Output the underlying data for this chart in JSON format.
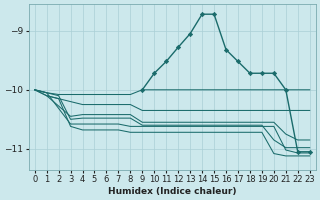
{
  "xlabel": "Humidex (Indice chaleur)",
  "ylabel": "",
  "bg_color": "#cce8ec",
  "grid_color": "#aacfd6",
  "line_color": "#1a6b6b",
  "xlim": [
    -0.5,
    23.5
  ],
  "ylim": [
    -11.35,
    -8.55
  ],
  "yticks": [
    -11,
    -10,
    -9
  ],
  "xticks": [
    0,
    1,
    2,
    3,
    4,
    5,
    6,
    7,
    8,
    9,
    10,
    11,
    12,
    13,
    14,
    15,
    16,
    17,
    18,
    19,
    20,
    21,
    22,
    23
  ],
  "series": [
    {
      "x": [
        0,
        1,
        2,
        3,
        4,
        5,
        6,
        7,
        8,
        9,
        10,
        11,
        12,
        13,
        14,
        15,
        16,
        17,
        18,
        19,
        20,
        21,
        22,
        23
      ],
      "y": [
        -10.0,
        -10.05,
        -10.08,
        -10.08,
        -10.08,
        -10.08,
        -10.08,
        -10.08,
        -10.08,
        -10.0,
        -10.0,
        -10.0,
        -10.0,
        -10.0,
        -10.0,
        -10.0,
        -10.0,
        -10.0,
        -10.0,
        -10.0,
        -10.0,
        -10.0,
        -10.0,
        -10.0
      ],
      "marker": false
    },
    {
      "x": [
        0,
        1,
        2,
        3,
        4,
        5,
        6,
        7,
        8,
        9,
        10,
        11,
        12,
        13,
        14,
        15,
        16,
        17,
        18,
        19,
        20,
        21,
        22,
        23
      ],
      "y": [
        -10.0,
        -10.1,
        -10.15,
        -10.2,
        -10.25,
        -10.25,
        -10.25,
        -10.25,
        -10.25,
        -10.35,
        -10.35,
        -10.35,
        -10.35,
        -10.35,
        -10.35,
        -10.35,
        -10.35,
        -10.35,
        -10.35,
        -10.35,
        -10.35,
        -10.35,
        -10.35,
        -10.35
      ],
      "marker": false
    },
    {
      "x": [
        1,
        3,
        4,
        5,
        6,
        7,
        8,
        9,
        10,
        11,
        12,
        13,
        14,
        15,
        16,
        17,
        18,
        19,
        20,
        21,
        22,
        23
      ],
      "y": [
        -10.1,
        -10.45,
        -10.42,
        -10.42,
        -10.42,
        -10.42,
        -10.42,
        -10.55,
        -10.55,
        -10.55,
        -10.55,
        -10.55,
        -10.55,
        -10.55,
        -10.55,
        -10.55,
        -10.55,
        -10.55,
        -10.55,
        -10.75,
        -10.85,
        -10.85
      ],
      "marker": false
    },
    {
      "x": [
        0,
        1,
        2,
        3,
        4,
        5,
        6,
        7,
        8,
        9,
        10,
        11,
        12,
        13,
        14,
        15,
        16,
        17,
        18,
        19,
        20,
        21,
        22,
        23
      ],
      "y": [
        -10.0,
        -10.05,
        -10.1,
        -10.5,
        -10.48,
        -10.48,
        -10.48,
        -10.48,
        -10.48,
        -10.6,
        -10.6,
        -10.6,
        -10.6,
        -10.6,
        -10.6,
        -10.6,
        -10.6,
        -10.6,
        -10.6,
        -10.6,
        -10.85,
        -10.98,
        -10.98,
        -10.98
      ],
      "marker": false
    },
    {
      "x": [
        0,
        1,
        3,
        4,
        5,
        6,
        7,
        8,
        9,
        10,
        11,
        12,
        13,
        14,
        15,
        16,
        17,
        18,
        19,
        20,
        21,
        22,
        23
      ],
      "y": [
        -10.0,
        -10.05,
        -10.58,
        -10.58,
        -10.58,
        -10.58,
        -10.58,
        -10.62,
        -10.62,
        -10.62,
        -10.62,
        -10.62,
        -10.62,
        -10.62,
        -10.62,
        -10.62,
        -10.62,
        -10.62,
        -10.62,
        -10.62,
        -11.02,
        -11.07,
        -11.07
      ],
      "marker": false
    },
    {
      "x": [
        0,
        1,
        2,
        3,
        4,
        5,
        6,
        7,
        8,
        9,
        10,
        11,
        12,
        13,
        14,
        15,
        16,
        17,
        18,
        19,
        20,
        21,
        22,
        23
      ],
      "y": [
        -10.0,
        -10.1,
        -10.15,
        -10.62,
        -10.68,
        -10.68,
        -10.68,
        -10.68,
        -10.72,
        -10.72,
        -10.72,
        -10.72,
        -10.72,
        -10.72,
        -10.72,
        -10.72,
        -10.72,
        -10.72,
        -10.72,
        -10.72,
        -11.08,
        -11.12,
        -11.12,
        -11.12
      ],
      "marker": false
    },
    {
      "x": [
        9,
        10,
        11,
        12,
        13,
        14,
        15,
        16,
        17,
        18,
        19,
        20,
        21,
        22,
        23
      ],
      "y": [
        -10.0,
        -9.72,
        -9.52,
        -9.28,
        -9.05,
        -8.72,
        -8.72,
        -9.32,
        -9.52,
        -9.72,
        -9.72,
        -9.72,
        -10.0,
        -11.05,
        -11.05
      ],
      "marker": true
    }
  ]
}
